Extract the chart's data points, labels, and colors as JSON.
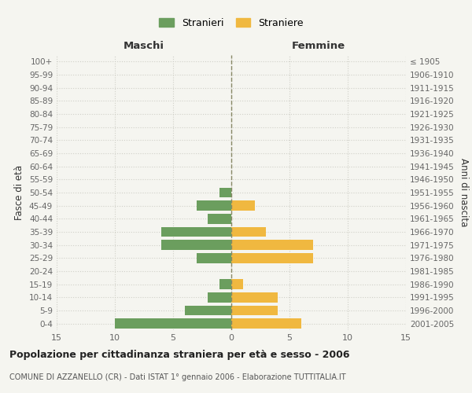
{
  "age_groups": [
    "0-4",
    "5-9",
    "10-14",
    "15-19",
    "20-24",
    "25-29",
    "30-34",
    "35-39",
    "40-44",
    "45-49",
    "50-54",
    "55-59",
    "60-64",
    "65-69",
    "70-74",
    "75-79",
    "80-84",
    "85-89",
    "90-94",
    "95-99",
    "100+"
  ],
  "birth_years": [
    "2001-2005",
    "1996-2000",
    "1991-1995",
    "1986-1990",
    "1981-1985",
    "1976-1980",
    "1971-1975",
    "1966-1970",
    "1961-1965",
    "1956-1960",
    "1951-1955",
    "1946-1950",
    "1941-1945",
    "1936-1940",
    "1931-1935",
    "1926-1930",
    "1921-1925",
    "1916-1920",
    "1911-1915",
    "1906-1910",
    "≤ 1905"
  ],
  "males": [
    10,
    4,
    2,
    1,
    0,
    3,
    6,
    6,
    2,
    3,
    1,
    0,
    0,
    0,
    0,
    0,
    0,
    0,
    0,
    0,
    0
  ],
  "females": [
    6,
    4,
    4,
    1,
    0,
    7,
    7,
    3,
    0,
    2,
    0,
    0,
    0,
    0,
    0,
    0,
    0,
    0,
    0,
    0,
    0
  ],
  "color_males": "#6b9e5e",
  "color_females": "#f0b840",
  "title": "Popolazione per cittadinanza straniera per età e sesso - 2006",
  "subtitle": "COMUNE DI AZZANELLO (CR) - Dati ISTAT 1° gennaio 2006 - Elaborazione TUTTITALIA.IT",
  "label_maschi": "Maschi",
  "label_femmine": "Femmine",
  "ylabel_left": "Fasce di età",
  "ylabel_right": "Anni di nascita",
  "legend_males": "Stranieri",
  "legend_females": "Straniere",
  "xlim": 15,
  "background_color": "#f5f5f0",
  "grid_color": "#d0d0c8"
}
